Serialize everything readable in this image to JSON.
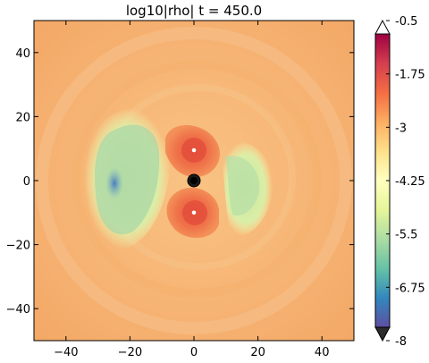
{
  "chart_data": {
    "type": "heatmap",
    "title": "log10|rho|  t =  450.0",
    "xlim": [
      -50,
      50
    ],
    "ylim": [
      -50,
      50
    ],
    "x_ticks": [
      -40,
      -20,
      0,
      20,
      40
    ],
    "x_tick_labels": [
      "−40",
      "−20",
      "0",
      "20",
      "40"
    ],
    "y_ticks": [
      -40,
      -20,
      0,
      20,
      40
    ],
    "y_tick_labels": [
      "−40",
      "−20",
      "0",
      "20",
      "40"
    ],
    "grid": false,
    "colorbar": {
      "min": -8,
      "max": -0.5,
      "ticks": [
        -0.5,
        -1.75,
        -3,
        -4.25,
        -5.5,
        -6.75,
        -8
      ],
      "tick_labels": [
        "-0.5",
        "-1.75",
        "-3",
        "-4.25",
        "-5.5",
        "-6.75",
        "-8"
      ],
      "colormap": "Spectral_r",
      "extend": "both",
      "placement": "right"
    },
    "markers": [
      {
        "label": "central-black-hole",
        "x": 0,
        "y": 0
      },
      {
        "label": "upper-companion",
        "x": 0,
        "y": 9.5
      },
      {
        "label": "lower-companion",
        "x": 0,
        "y": -10
      }
    ]
  },
  "colors": {
    "low": "#5e4fa2",
    "mid": "#fee08b",
    "high": "#9e0142",
    "background_density": "#f6b373"
  }
}
